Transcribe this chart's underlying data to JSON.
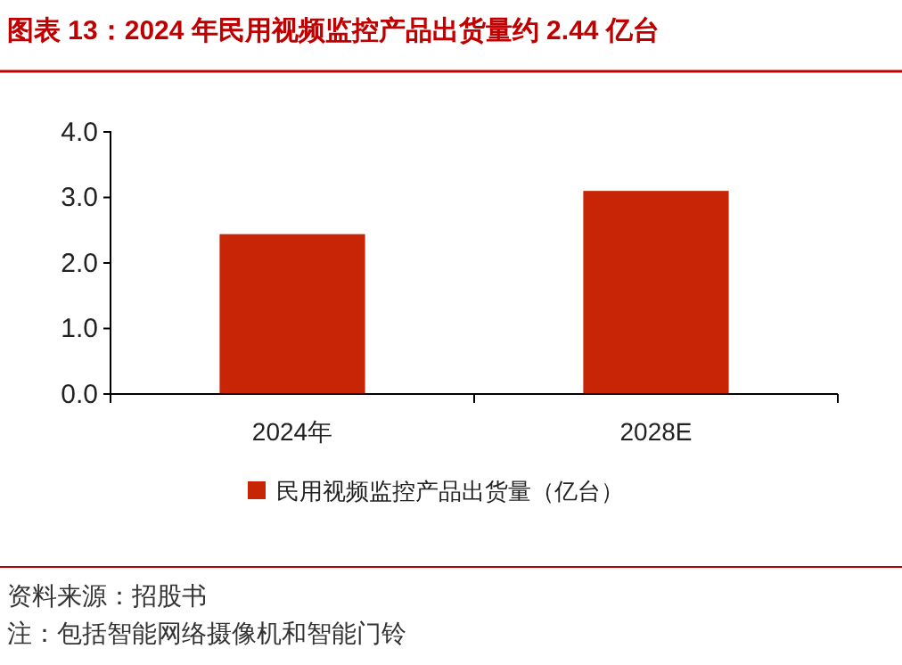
{
  "chart_data": {
    "type": "bar",
    "title": "图表 13：2024 年民用视频监控产品出货量约 2.44 亿台",
    "categories": [
      "2024年",
      "2028E"
    ],
    "series": [
      {
        "name": "民用视频监控产品出货量（亿台）",
        "color": "#c82506",
        "values": [
          2.44,
          3.1
        ]
      }
    ],
    "ylim": [
      0,
      4
    ],
    "yticks": [
      {
        "value": 0,
        "label": "0.0"
      },
      {
        "value": 1,
        "label": "1.0"
      },
      {
        "value": 2,
        "label": "2.0"
      },
      {
        "value": 3,
        "label": "3.0"
      },
      {
        "value": 4,
        "label": "4.0"
      }
    ],
    "legend": "bottom",
    "grid": false,
    "annotations": [
      "资料来源：招股书",
      "注：包括智能网络摄像机和智能门铃"
    ]
  }
}
